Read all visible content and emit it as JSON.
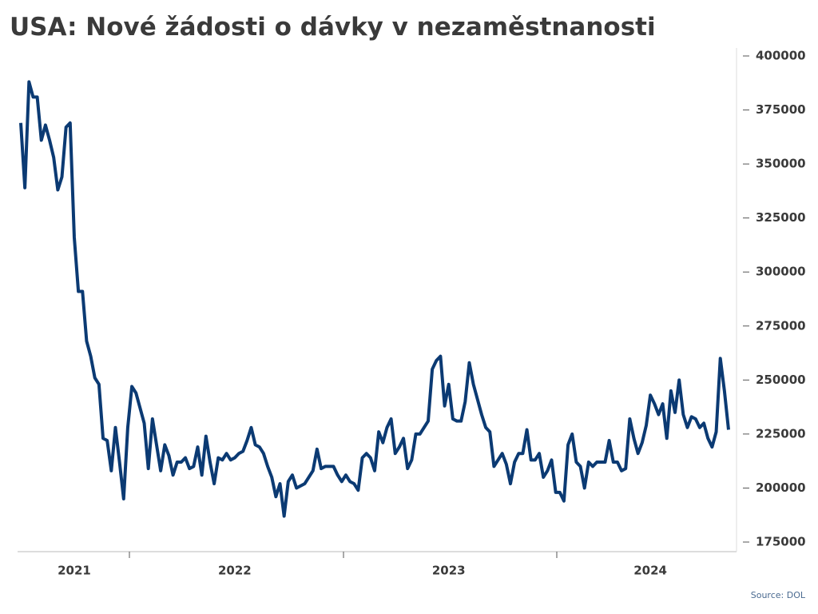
{
  "chart_data": {
    "type": "line",
    "title": "USA: Nové žádosti o dávky v nezaměstnanosti",
    "source": "Source: DOL",
    "color": "#0b3a73",
    "categories": [
      null,
      null,
      null,
      null,
      null,
      null,
      null,
      null,
      null,
      null,
      null,
      null,
      null,
      "2021",
      null,
      null,
      null,
      null,
      null,
      null,
      null,
      null,
      null,
      null,
      null,
      null,
      null,
      null,
      null,
      null,
      null,
      null,
      null,
      null,
      null,
      null,
      null,
      null,
      null,
      null,
      null,
      null,
      null,
      null,
      null,
      null,
      null,
      null,
      null,
      null,
      null,
      null,
      "2022",
      null,
      null,
      null,
      null,
      null,
      null,
      null,
      null,
      null,
      null,
      null,
      null,
      null,
      null,
      null,
      null,
      null,
      null,
      null,
      null,
      null,
      null,
      null,
      null,
      null,
      null,
      null,
      null,
      null,
      null,
      null,
      null,
      null,
      null,
      null,
      null,
      null,
      null,
      null,
      null,
      null,
      null,
      null,
      null,
      null,
      null,
      null,
      null,
      null,
      null,
      null,
      "2023",
      null,
      null,
      null,
      null,
      null,
      null,
      null,
      null,
      null,
      null,
      null,
      null,
      null,
      null,
      null,
      null,
      null,
      null,
      null,
      null,
      null,
      null,
      null,
      null,
      null,
      null,
      null,
      null,
      null,
      null,
      null,
      null,
      null,
      null,
      null,
      null,
      null,
      null,
      null,
      null,
      null,
      null,
      null,
      null,
      null,
      null,
      null,
      null,
      "2024",
      null,
      null,
      null,
      null,
      null,
      null,
      null,
      null,
      null,
      null,
      null,
      null,
      null,
      null,
      null,
      null,
      null,
      null,
      null
    ],
    "values": [
      369000,
      339000,
      388000,
      381000,
      381000,
      361000,
      368000,
      361000,
      353000,
      338000,
      344000,
      367000,
      369000,
      316000,
      291000,
      291000,
      268000,
      261000,
      251000,
      248000,
      223000,
      222000,
      208000,
      228000,
      212000,
      195000,
      228000,
      247000,
      244000,
      237000,
      230000,
      209000,
      232000,
      220000,
      208000,
      220000,
      215000,
      206000,
      212000,
      212000,
      214000,
      209000,
      210000,
      219000,
      206000,
      224000,
      212000,
      202000,
      214000,
      213000,
      216000,
      213000,
      214000,
      216000,
      217000,
      222000,
      228000,
      220000,
      219000,
      216000,
      210000,
      205000,
      196000,
      202000,
      187000,
      203000,
      206000,
      200000,
      201000,
      202000,
      205000,
      208000,
      218000,
      209000,
      210000,
      210000,
      210000,
      206000,
      203000,
      206000,
      203000,
      202000,
      199000,
      214000,
      216000,
      214000,
      208000,
      226000,
      221000,
      228000,
      232000,
      216000,
      219000,
      223000,
      209000,
      213000,
      225000,
      225000,
      228000,
      231000,
      255000,
      259000,
      261000,
      238000,
      248000,
      232000,
      231000,
      231000,
      240000,
      258000,
      248000,
      241000,
      234000,
      228000,
      226000,
      210000,
      213000,
      216000,
      211000,
      202000,
      212000,
      216000,
      216000,
      227000,
      213000,
      213000,
      216000,
      205000,
      208000,
      213000,
      198000,
      198000,
      194000,
      220000,
      225000,
      212000,
      210000,
      200000,
      212000,
      210000,
      212000,
      212000,
      212000,
      222000,
      212000,
      212000,
      208000,
      209000,
      232000,
      223000,
      216000,
      221000,
      229000,
      243000,
      239000,
      234000,
      239000,
      223000,
      245000,
      235000,
      250000,
      234000,
      228000,
      233000,
      232000,
      228000,
      230000,
      223000,
      219000,
      226000,
      260000,
      245000,
      227000
    ],
    "ylim": [
      175000,
      400000
    ],
    "yticks": [
      175000,
      200000,
      225000,
      250000,
      275000,
      300000,
      325000,
      350000,
      375000,
      400000
    ]
  }
}
